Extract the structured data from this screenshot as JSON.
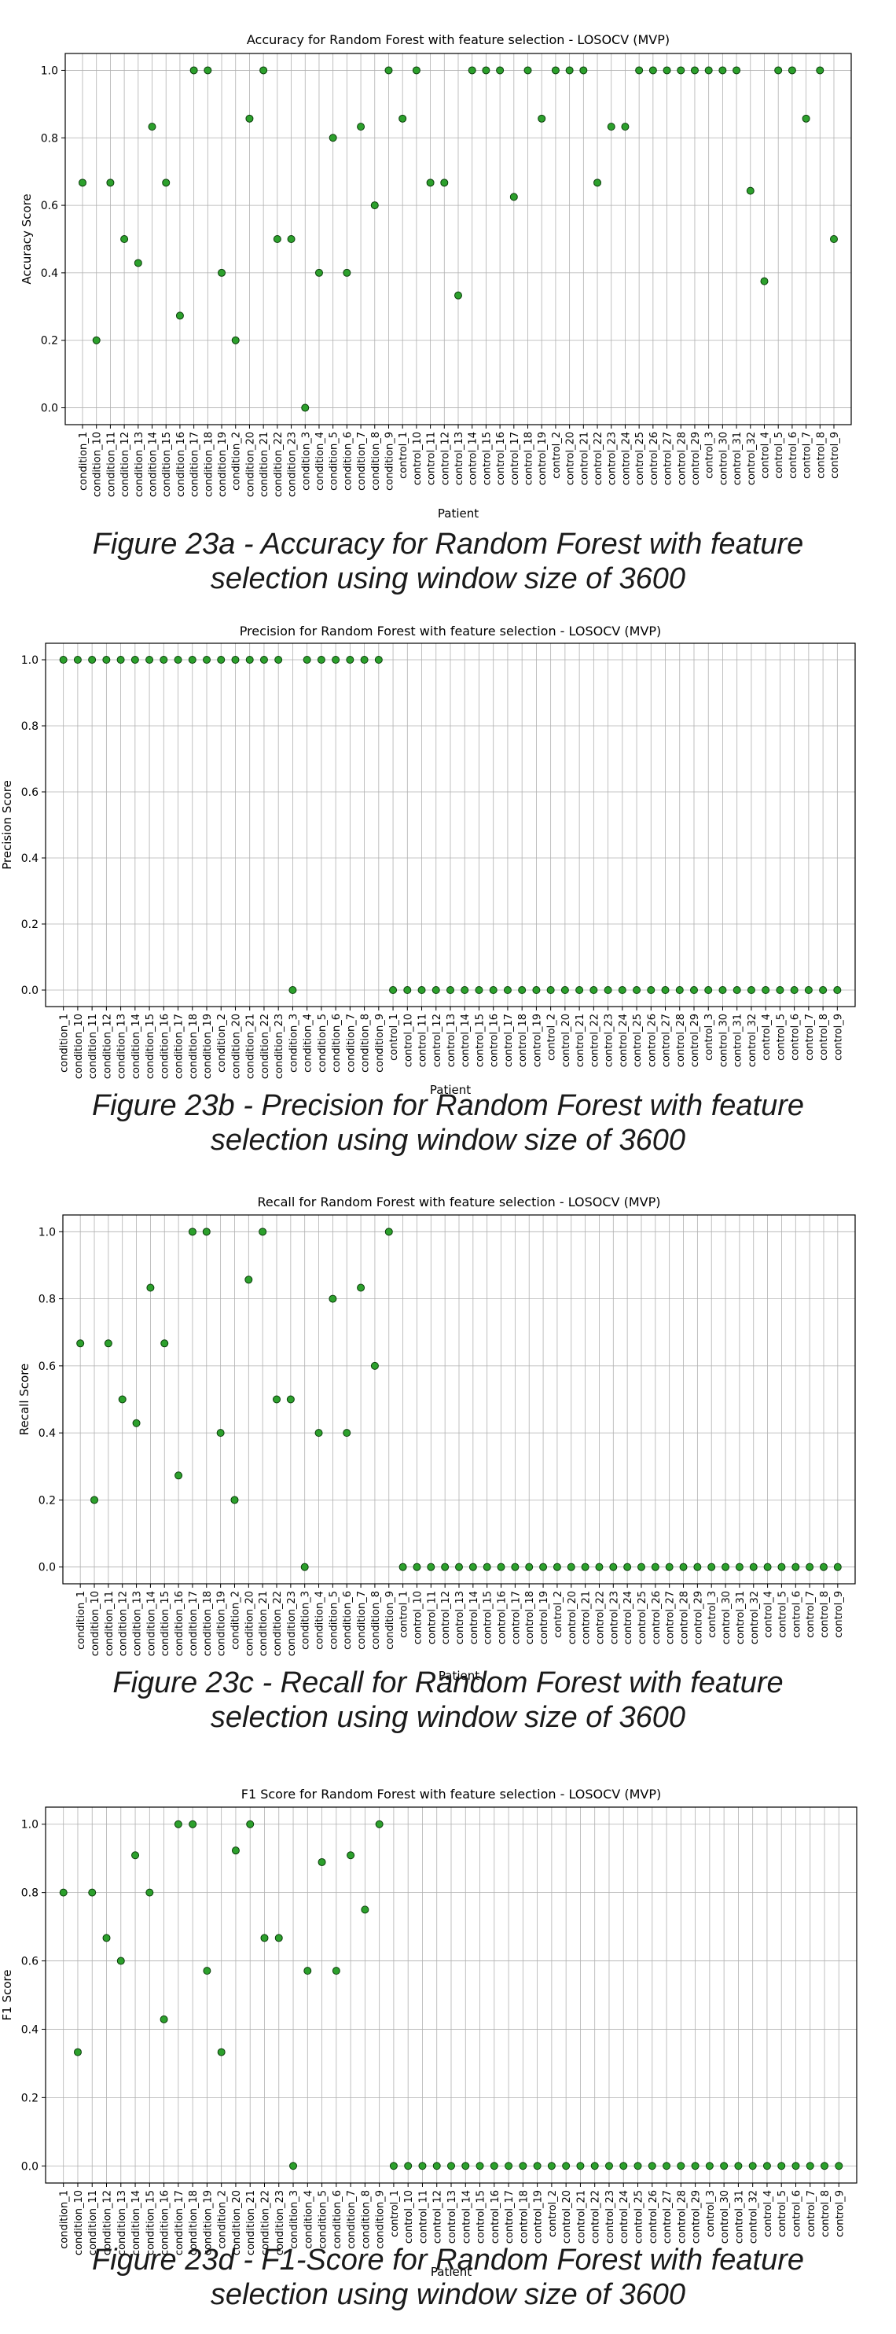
{
  "patients": [
    "condition_1",
    "condition_10",
    "condition_11",
    "condition_12",
    "condition_13",
    "condition_14",
    "condition_15",
    "condition_16",
    "condition_17",
    "condition_18",
    "condition_19",
    "condition_2",
    "condition_20",
    "condition_21",
    "condition_22",
    "condition_23",
    "condition_3",
    "condition_4",
    "condition_5",
    "condition_6",
    "condition_7",
    "condition_8",
    "condition_9",
    "control_1",
    "control_10",
    "control_11",
    "control_12",
    "control_13",
    "control_14",
    "control_15",
    "control_16",
    "control_17",
    "control_18",
    "control_19",
    "control_2",
    "control_20",
    "control_21",
    "control_22",
    "control_23",
    "control_24",
    "control_25",
    "control_26",
    "control_27",
    "control_28",
    "control_29",
    "control_3",
    "control_30",
    "control_31",
    "control_32",
    "control_4",
    "control_5",
    "control_6",
    "control_7",
    "control_8",
    "control_9"
  ],
  "marker_color": "#2ca02c",
  "chart_data": [
    {
      "type": "scatter",
      "title": "Accuracy for Random Forest with feature selection - LOSOCV (MVP)",
      "xlabel": "Patient",
      "ylabel": "Accuracy Score",
      "ylim": [
        -0.05,
        1.05
      ],
      "yticks": [
        "0.0",
        "0.2",
        "0.4",
        "0.6",
        "0.8",
        "1.0"
      ],
      "grid": true,
      "values": [
        0.667,
        0.2,
        0.667,
        0.5,
        0.429,
        0.833,
        0.667,
        0.273,
        1.0,
        1.0,
        0.4,
        0.2,
        0.857,
        1.0,
        0.5,
        0.5,
        0.0,
        0.4,
        0.8,
        0.4,
        0.833,
        0.6,
        1.0,
        0.857,
        1.0,
        0.667,
        0.667,
        0.333,
        1.0,
        1.0,
        1.0,
        0.625,
        1.0,
        0.857,
        1.0,
        1.0,
        1.0,
        0.667,
        0.833,
        0.833,
        1.0,
        1.0,
        1.0,
        1.0,
        1.0,
        1.0,
        1.0,
        1.0,
        0.643,
        0.375,
        1.0,
        1.0,
        0.857,
        1.0,
        0.5
      ],
      "caption": [
        "Figure 23a - Accuracy for Random Forest with feature",
        "selection using window size of 3600"
      ]
    },
    {
      "type": "scatter",
      "title": "Precision for Random Forest with feature selection - LOSOCV (MVP)",
      "xlabel": "Patient",
      "ylabel": "Precision Score",
      "ylim": [
        -0.05,
        1.05
      ],
      "yticks": [
        "0.0",
        "0.2",
        "0.4",
        "0.6",
        "0.8",
        "1.0"
      ],
      "grid": true,
      "values": [
        1,
        1,
        1,
        1,
        1,
        1,
        1,
        1,
        1,
        1,
        1,
        1,
        1,
        1,
        1,
        1,
        0,
        1,
        1,
        1,
        1,
        1,
        1,
        0,
        0,
        0,
        0,
        0,
        0,
        0,
        0,
        0,
        0,
        0,
        0,
        0,
        0,
        0,
        0,
        0,
        0,
        0,
        0,
        0,
        0,
        0,
        0,
        0,
        0,
        0,
        0,
        0,
        0,
        0,
        0
      ],
      "caption": [
        "Figure 23b - Precision for Random Forest with feature",
        "selection using window size of 3600"
      ]
    },
    {
      "type": "scatter",
      "title": "Recall for Random Forest with feature selection - LOSOCV (MVP)",
      "xlabel": "Patient",
      "ylabel": "Recall Score",
      "ylim": [
        -0.05,
        1.05
      ],
      "yticks": [
        "0.0",
        "0.2",
        "0.4",
        "0.6",
        "0.8",
        "1.0"
      ],
      "grid": true,
      "values": [
        0.667,
        0.2,
        0.667,
        0.5,
        0.429,
        0.833,
        0.667,
        0.273,
        1.0,
        1.0,
        0.4,
        0.2,
        0.857,
        1.0,
        0.5,
        0.5,
        0.0,
        0.4,
        0.8,
        0.4,
        0.833,
        0.6,
        1.0,
        0,
        0,
        0,
        0,
        0,
        0,
        0,
        0,
        0,
        0,
        0,
        0,
        0,
        0,
        0,
        0,
        0,
        0,
        0,
        0,
        0,
        0,
        0,
        0,
        0,
        0,
        0,
        0,
        0,
        0,
        0,
        0
      ],
      "caption": [
        "Figure 23c - Recall for Random Forest with feature",
        "selection using window size of 3600"
      ]
    },
    {
      "type": "scatter",
      "title": "F1 Score for Random Forest with feature selection - LOSOCV (MVP)",
      "xlabel": "Patient",
      "ylabel": "F1 Score",
      "ylim": [
        -0.05,
        1.05
      ],
      "yticks": [
        "0.0",
        "0.2",
        "0.4",
        "0.6",
        "0.8",
        "1.0"
      ],
      "grid": true,
      "values": [
        0.8,
        0.333,
        0.8,
        0.667,
        0.6,
        0.909,
        0.8,
        0.429,
        1.0,
        1.0,
        0.571,
        0.333,
        0.923,
        1.0,
        0.667,
        0.667,
        0.0,
        0.571,
        0.889,
        0.571,
        0.909,
        0.75,
        1.0,
        0,
        0,
        0,
        0,
        0,
        0,
        0,
        0,
        0,
        0,
        0,
        0,
        0,
        0,
        0,
        0,
        0,
        0,
        0,
        0,
        0,
        0,
        0,
        0,
        0,
        0,
        0,
        0,
        0,
        0,
        0,
        0
      ],
      "caption": [
        "Figure 23d - F1-Score for Random Forest with feature",
        "selection using window size of 3600"
      ]
    }
  ]
}
